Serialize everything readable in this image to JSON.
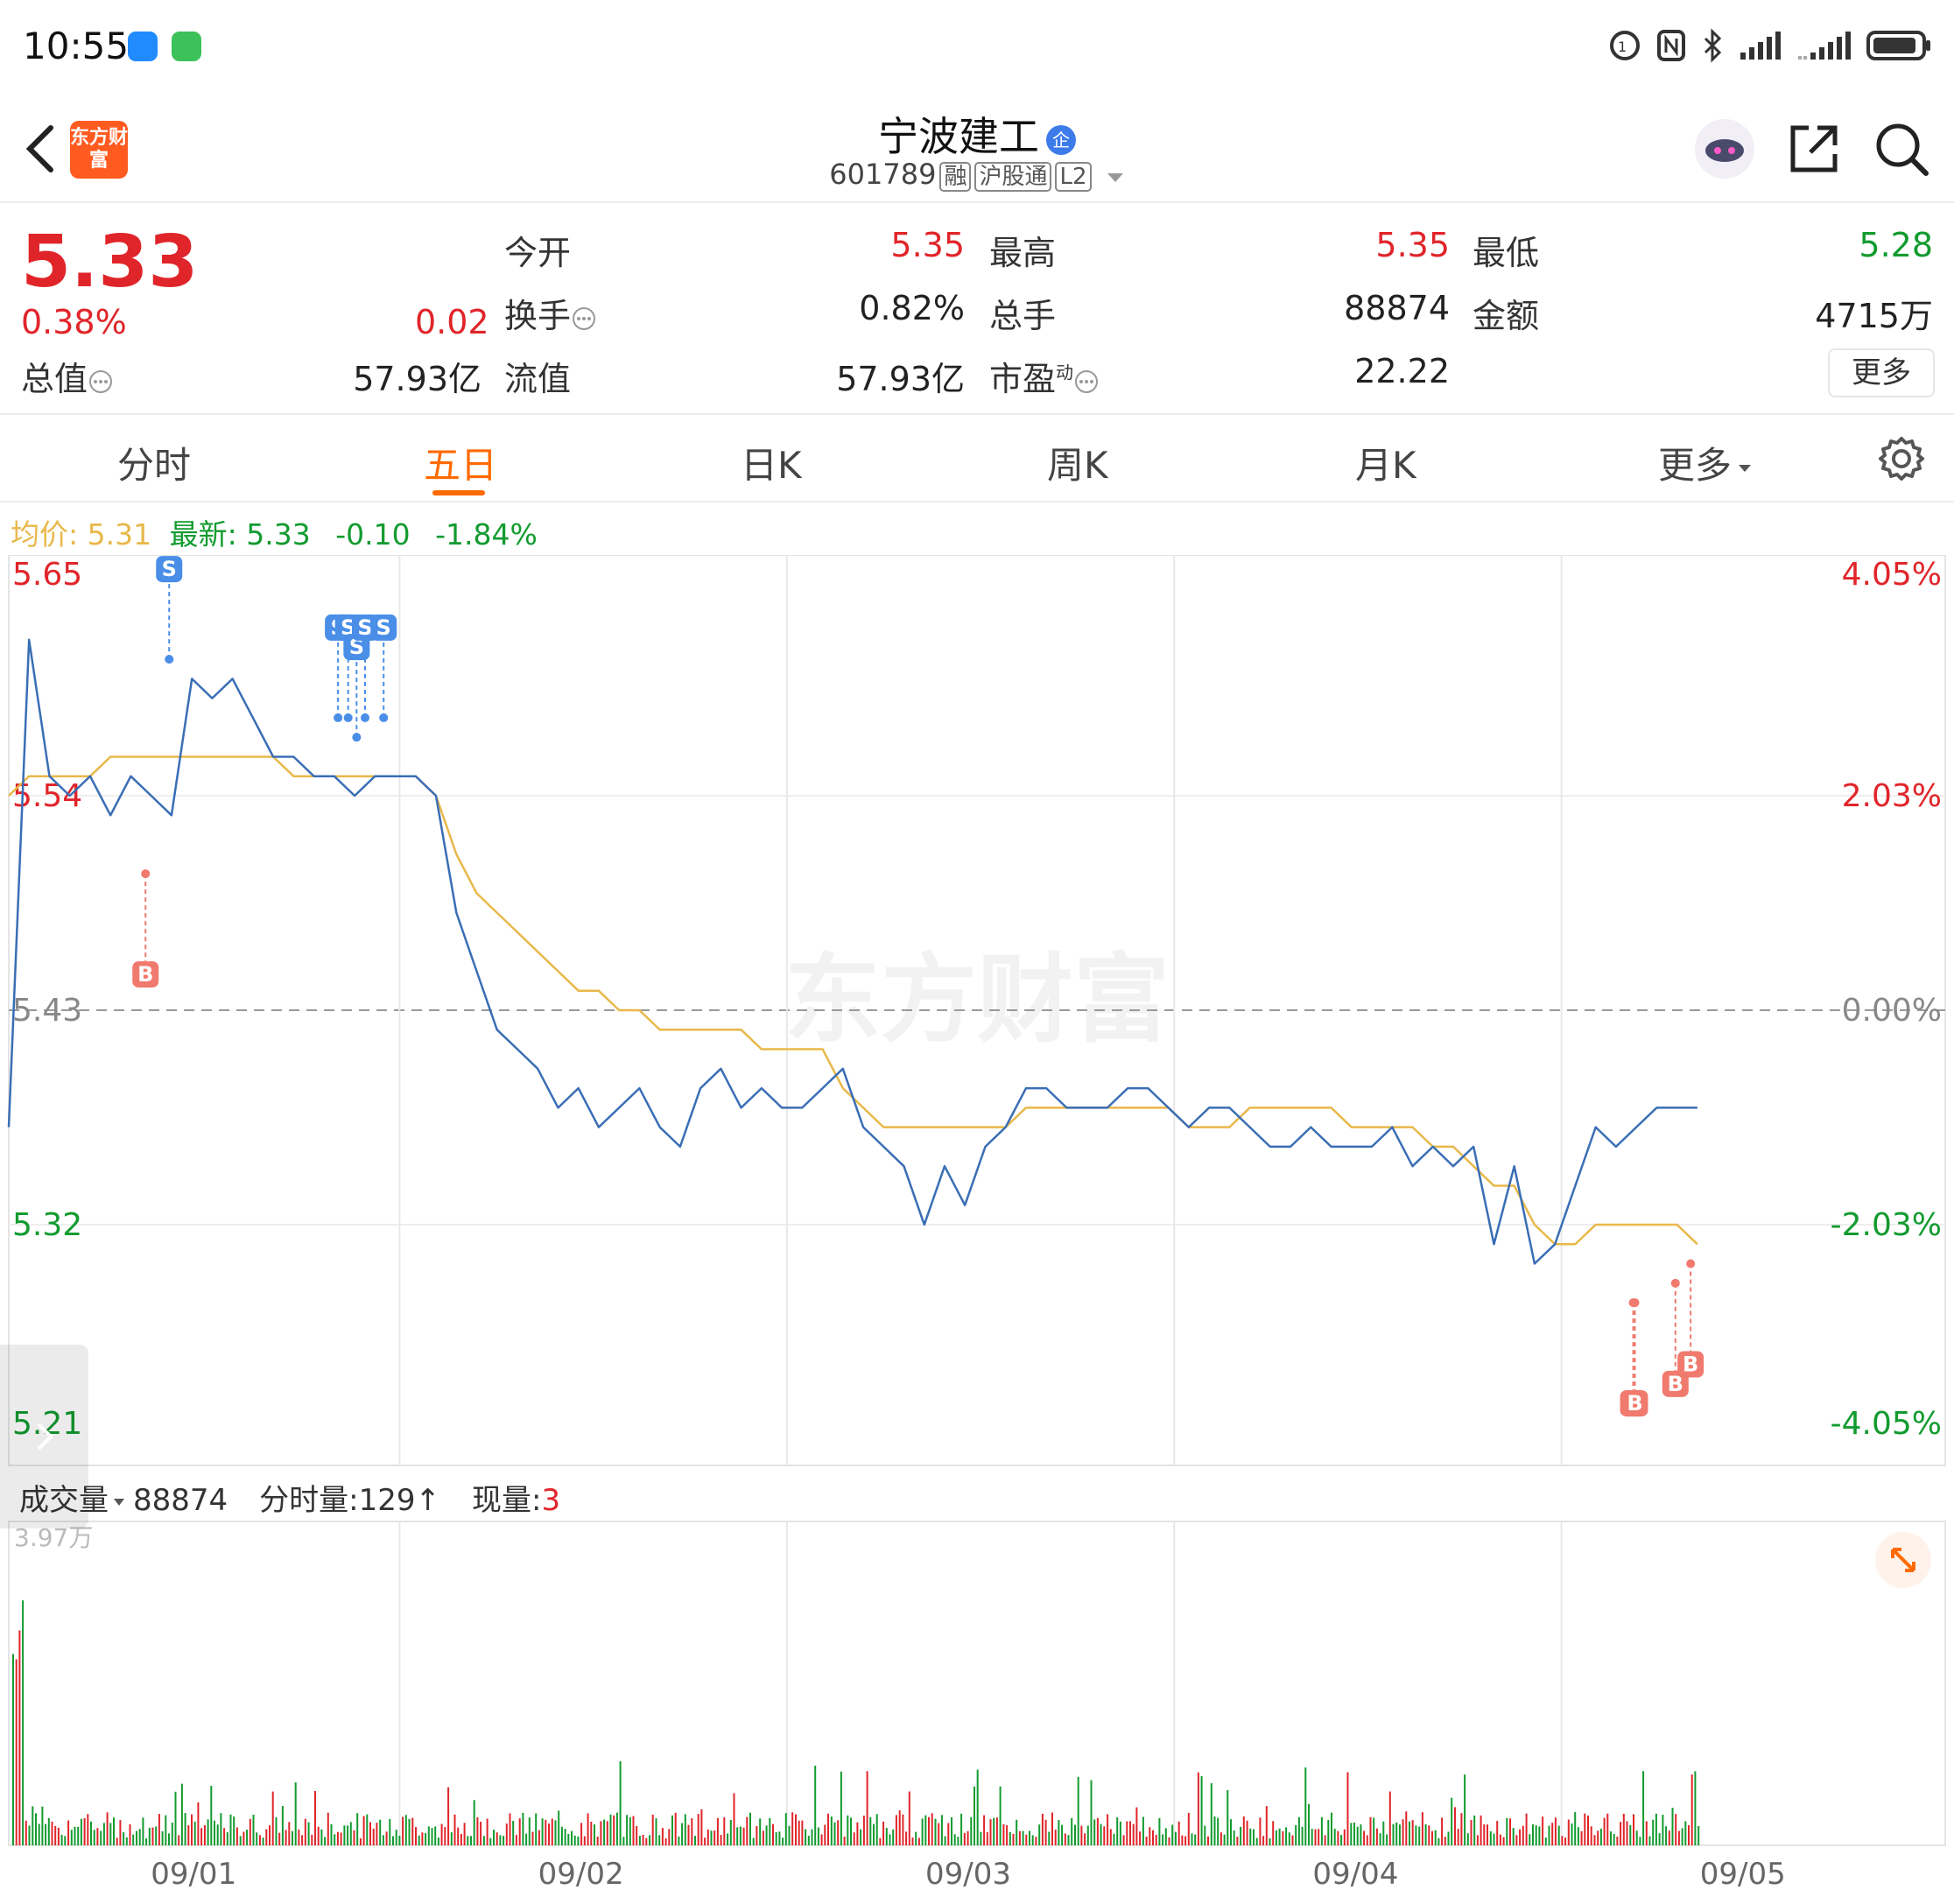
{
  "status_bar": {
    "time": "10:55"
  },
  "header": {
    "app_logo_text": "东方财富",
    "stock_name": "宁波建工",
    "stock_badge": "企",
    "stock_code": "601789",
    "tags": [
      "融",
      "沪股通",
      "L2"
    ]
  },
  "quote": {
    "price": "5.33",
    "change_pct": "0.38%",
    "change": "0.02",
    "fields": [
      {
        "label": "今开",
        "value": "5.35",
        "color": "red"
      },
      {
        "label": "最高",
        "value": "5.35",
        "color": "red"
      },
      {
        "label": "最低",
        "value": "5.28",
        "color": "green"
      },
      {
        "label": "换手",
        "value": "0.82%",
        "color": "black"
      },
      {
        "label": "总手",
        "value": "88874",
        "color": "black"
      },
      {
        "label": "金额",
        "value": "4715万",
        "color": "black"
      },
      {
        "label": "总值",
        "value": "57.93亿",
        "color": "black"
      },
      {
        "label": "流值",
        "value": "57.93亿",
        "color": "black"
      },
      {
        "label": "市盈",
        "value": "22.22",
        "color": "black"
      }
    ],
    "pe_superscript": "动",
    "more_label": "更多"
  },
  "tabs": {
    "items": [
      "分时",
      "五日",
      "日K",
      "周K",
      "月K",
      "更多"
    ],
    "active": "五日"
  },
  "info_line": {
    "avg_label": "均价:",
    "avg_value": "5.31",
    "latest_label": "最新:",
    "latest_value": "5.33",
    "change": "-0.10",
    "change_pct": "-1.84%"
  },
  "volume": {
    "label": "成交量",
    "total": "88874",
    "minute_label": "分时量:",
    "minute_value": "129",
    "current_label": "现量:",
    "current_value": "3",
    "axis_max": "3.97万"
  },
  "watermark": "东方财富",
  "colors": {
    "up": "#e0252a",
    "down": "#129b2f",
    "price_line": "#3a6eb5",
    "avg_line": "#e8b84a",
    "accent": "#ff6a00",
    "buy_marker": "#f07a6e",
    "sell_marker": "#4a8ee8"
  },
  "chart_data": {
    "type": "line",
    "title": "",
    "x_labels": [
      "09/01",
      "09/02",
      "09/03",
      "09/04",
      "09/05"
    ],
    "y_left_ticks": [
      "5.65",
      "5.54",
      "5.43",
      "5.32",
      "5.21"
    ],
    "y_right_ticks": [
      "4.05%",
      "2.03%",
      "0.00%",
      "-2.03%",
      "-4.05%"
    ],
    "ylim": [
      5.21,
      5.65
    ],
    "prev_close": 5.43,
    "series": [
      {
        "key": "price",
        "values": [
          5.37,
          5.62,
          5.55,
          5.54,
          5.55,
          5.53,
          5.55,
          5.54,
          5.53,
          5.6,
          5.59,
          5.6,
          5.58,
          5.56,
          5.56,
          5.55,
          5.55,
          5.54,
          5.55,
          5.55,
          5.55,
          5.54,
          5.48,
          5.45,
          5.42,
          5.41,
          5.4,
          5.38,
          5.39,
          5.37,
          5.38,
          5.39,
          5.37,
          5.36,
          5.39,
          5.4,
          5.38,
          5.39,
          5.38,
          5.38,
          5.39,
          5.4,
          5.37,
          5.36,
          5.35,
          5.32,
          5.35,
          5.33,
          5.36,
          5.37,
          5.39,
          5.39,
          5.38,
          5.38,
          5.38,
          5.39,
          5.39,
          5.38,
          5.37,
          5.38,
          5.38,
          5.37,
          5.36,
          5.36,
          5.37,
          5.36,
          5.36,
          5.36,
          5.37,
          5.35,
          5.36,
          5.35,
          5.36,
          5.31,
          5.35,
          5.3,
          5.31,
          5.34,
          5.37,
          5.36,
          5.37,
          5.38,
          5.38,
          5.38
        ]
      },
      {
        "key": "average",
        "values": [
          5.54,
          5.55,
          5.55,
          5.55,
          5.55,
          5.56,
          5.56,
          5.56,
          5.56,
          5.56,
          5.56,
          5.56,
          5.56,
          5.56,
          5.55,
          5.55,
          5.55,
          5.55,
          5.55,
          5.55,
          5.55,
          5.54,
          5.51,
          5.49,
          5.48,
          5.47,
          5.46,
          5.45,
          5.44,
          5.44,
          5.43,
          5.43,
          5.42,
          5.42,
          5.42,
          5.42,
          5.42,
          5.41,
          5.41,
          5.41,
          5.41,
          5.39,
          5.38,
          5.37,
          5.37,
          5.37,
          5.37,
          5.37,
          5.37,
          5.37,
          5.38,
          5.38,
          5.38,
          5.38,
          5.38,
          5.38,
          5.38,
          5.38,
          5.37,
          5.37,
          5.37,
          5.38,
          5.38,
          5.38,
          5.38,
          5.38,
          5.37,
          5.37,
          5.37,
          5.37,
          5.36,
          5.36,
          5.35,
          5.34,
          5.34,
          5.32,
          5.31,
          5.31,
          5.32,
          5.32,
          5.32,
          5.32,
          5.32,
          5.31
        ]
      }
    ],
    "markers": [
      {
        "type": "S",
        "price": 5.61,
        "pos": 0.095
      },
      {
        "type": "B",
        "price": 5.5,
        "pos": 0.081
      },
      {
        "type": "S",
        "price": 5.58,
        "pos": 0.195
      },
      {
        "type": "S",
        "price": 5.58,
        "pos": 0.201
      },
      {
        "type": "S",
        "price": 5.57,
        "pos": 0.206
      },
      {
        "type": "S",
        "price": 5.58,
        "pos": 0.211
      },
      {
        "type": "S",
        "price": 5.58,
        "pos": 0.222
      },
      {
        "type": "B",
        "price": 5.28,
        "pos": 0.962
      },
      {
        "type": "B",
        "price": 5.28,
        "pos": 0.963
      },
      {
        "type": "B",
        "price": 5.29,
        "pos": 0.987
      },
      {
        "type": "B",
        "price": 5.3,
        "pos": 0.996
      }
    ]
  }
}
